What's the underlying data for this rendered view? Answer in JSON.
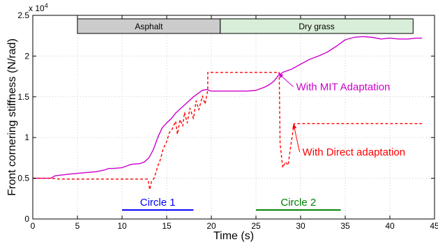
{
  "chart_data": {
    "type": "line",
    "xlabel": "Time (s)",
    "ylabel": "Front cornering stiffness (N/rad)",
    "xlim": [
      0,
      45
    ],
    "ylim": [
      0,
      25000
    ],
    "x_ticks": [
      0,
      5,
      10,
      15,
      20,
      25,
      30,
      35,
      40,
      45
    ],
    "y_ticks": [
      0,
      5000,
      10000,
      15000,
      20000,
      25000
    ],
    "y_tick_labels": [
      "0",
      "0.5",
      "1",
      "1.5",
      "2",
      "2.5"
    ],
    "y_multiplier": "x 10",
    "y_multiplier_exp": "4",
    "grid": true,
    "surfaces": [
      {
        "label": "Asphalt",
        "x0": 5,
        "x1": 21,
        "color": "#cccccc"
      },
      {
        "label": "Dry grass",
        "x0": 21,
        "x1": 42.6,
        "color": "#d9eed9"
      }
    ],
    "circles": [
      {
        "label": "Circle 1",
        "x0": 10,
        "x1": 18,
        "y": 1100,
        "color": "#0000ff"
      },
      {
        "label": "Circle 2",
        "x0": 25,
        "x1": 34.5,
        "y": 1100,
        "color": "#008000"
      }
    ],
    "series": [
      {
        "name": "With MIT Adaptation",
        "color": "#cc00cc",
        "style": "solid",
        "x": [
          0,
          2,
          2.5,
          4,
          5,
          6,
          7,
          8,
          8.5,
          9,
          10,
          10.5,
          11,
          12,
          12.5,
          13,
          13.5,
          14,
          14.5,
          15,
          15.5,
          16,
          17,
          17.5,
          18,
          18.5,
          19,
          19.5,
          20,
          21,
          22,
          24,
          25,
          26,
          26.5,
          27,
          27.5,
          28,
          28.5,
          29,
          30,
          31,
          32,
          33,
          34,
          34.5,
          35,
          36,
          37,
          38,
          39,
          40,
          41,
          42,
          43,
          43.6
        ],
        "y": [
          5000,
          5000,
          5300,
          5500,
          5600,
          5700,
          5800,
          6000,
          6200,
          6200,
          6300,
          6500,
          6700,
          6800,
          7000,
          7500,
          8500,
          10000,
          11200,
          11800,
          12300,
          13000,
          14000,
          14500,
          15000,
          15400,
          15800,
          15900,
          15700,
          15700,
          15700,
          15700,
          15800,
          16200,
          16500,
          16900,
          17600,
          18000,
          18200,
          18400,
          19000,
          19600,
          20000,
          20500,
          21200,
          21600,
          22000,
          22300,
          22400,
          22300,
          22100,
          22200,
          22100,
          22100,
          22200,
          22200
        ]
      },
      {
        "name": "With Direct adaptation",
        "color": "#ff0000",
        "style": "dashed",
        "x": [
          0,
          2,
          3,
          5,
          7,
          9,
          10,
          11,
          12,
          12.9,
          13.1,
          13.3,
          13.6,
          14,
          14.3,
          14.6,
          15,
          15.3,
          15.6,
          16,
          16.2,
          16.5,
          16.8,
          17,
          17.3,
          17.6,
          18,
          18.3,
          18.6,
          19,
          19.3,
          19.6,
          19.6,
          21,
          25,
          27.6,
          27.7,
          28,
          28.3,
          28.6,
          28.9,
          29.2,
          29.3,
          30,
          32,
          35,
          38,
          41,
          43.6
        ],
        "y": [
          5000,
          5000,
          4900,
          4900,
          4900,
          4900,
          4900,
          4900,
          4900,
          4900,
          3600,
          4600,
          5000,
          6500,
          7300,
          8600,
          9500,
          10600,
          11000,
          12000,
          10400,
          12200,
          11400,
          13100,
          11800,
          13600,
          12300,
          14500,
          13400,
          15100,
          14100,
          15800,
          18000,
          18000,
          18000,
          18000,
          9200,
          6300,
          7000,
          6600,
          9000,
          11200,
          11700,
          11700,
          11700,
          11700,
          11700,
          11700,
          11700
        ]
      }
    ],
    "annotations": [
      {
        "text": "With MIT Adaptation",
        "color": "#cc00cc",
        "tx": 29.5,
        "ty": 15800,
        "ax": 27.5,
        "ay": 17900
      },
      {
        "text": "With Direct adaptation",
        "color": "#ff0000",
        "tx": 30.2,
        "ty": 7800,
        "ax": 29.2,
        "ay": 11700
      }
    ]
  }
}
